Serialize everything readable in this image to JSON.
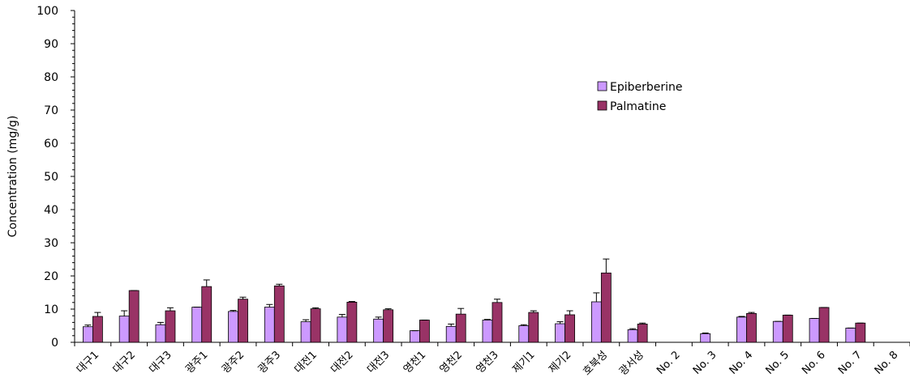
{
  "chart_data": {
    "type": "bar",
    "ylabel": "Concentration (mg/g)",
    "xlabel": "",
    "ylim": [
      0,
      100
    ],
    "yticks": [
      0,
      10,
      20,
      30,
      40,
      50,
      60,
      70,
      80,
      90,
      100
    ],
    "grid": false,
    "legend_position": "top-right",
    "categories": [
      "대구1",
      "대구2",
      "대구3",
      "광주1",
      "광주2",
      "광주3",
      "대전1",
      "대전2",
      "대전3",
      "영천1",
      "영천2",
      "영천3",
      "제기1",
      "제기2",
      "호북성",
      "광서성",
      "No. 2",
      "No. 3",
      "No. 4",
      "No. 5",
      "No. 6",
      "No. 7",
      "No. 8"
    ],
    "series": [
      {
        "name": "Epiberberine",
        "color": "#cc99ff",
        "values": [
          4.7,
          7.9,
          5.3,
          10.6,
          9.3,
          10.6,
          6.2,
          7.6,
          7.0,
          3.5,
          4.8,
          6.7,
          5.0,
          5.6,
          12.2,
          3.8,
          0,
          2.6,
          7.6,
          6.3,
          7.2,
          4.3,
          0
        ],
        "errors": [
          0.5,
          1.6,
          0.7,
          0,
          0.3,
          0.8,
          0.6,
          0.8,
          0.6,
          0,
          0.7,
          0.2,
          0.3,
          0.6,
          2.7,
          0.3,
          0,
          0.2,
          0.2,
          0,
          0,
          0,
          0
        ]
      },
      {
        "name": "Palmatine",
        "color": "#993366",
        "values": [
          7.8,
          15.6,
          9.5,
          16.8,
          13.0,
          17.0,
          10.1,
          12.1,
          9.8,
          6.7,
          8.5,
          12.0,
          9.0,
          8.3,
          20.9,
          5.5,
          0,
          0,
          8.7,
          8.2,
          10.5,
          5.8,
          0
        ],
        "errors": [
          1.2,
          0,
          0.9,
          2.0,
          0.6,
          0.5,
          0.3,
          0.2,
          0.3,
          0,
          1.7,
          1.0,
          0.5,
          1.2,
          4.2,
          0.3,
          0,
          0,
          0.3,
          0,
          0,
          0,
          0
        ]
      }
    ]
  }
}
